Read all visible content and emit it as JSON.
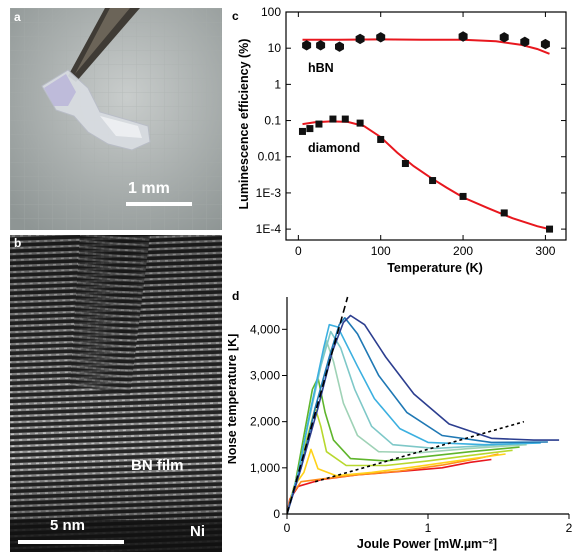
{
  "panels": {
    "a": {
      "label": "a",
      "scale_text": "1 mm"
    },
    "b": {
      "label": "b",
      "film_text": "BN film",
      "scale_text": "5 nm",
      "substrate_text": "Ni"
    }
  },
  "chart_data": [
    {
      "panel_label": "c",
      "type": "scatter",
      "ylabel": "Luminescence efficiency (%)",
      "xlabel": "Temperature (K)",
      "xlim": [
        -15,
        325
      ],
      "ylim": [
        5e-05,
        100
      ],
      "y_scale": "log",
      "grid": false,
      "x_ticks": [
        0,
        100,
        200,
        300
      ],
      "y_ticks": [
        {
          "v": 100,
          "label": "100"
        },
        {
          "v": 10,
          "label": "10"
        },
        {
          "v": 1,
          "label": "1"
        },
        {
          "v": 0.1,
          "label": "0.1"
        },
        {
          "v": 0.01,
          "label": "0.01"
        },
        {
          "v": 0.001,
          "label": "1E-3"
        },
        {
          "v": 0.0001,
          "label": "1E-4"
        }
      ],
      "fit_color": "#e8171e",
      "marker_color": "#111111",
      "series": [
        {
          "name": "hBN",
          "marker": "hexagon",
          "points": [
            [
              10,
              12
            ],
            [
              27,
              12
            ],
            [
              50,
              11
            ],
            [
              75,
              18
            ],
            [
              100,
              20
            ],
            [
              200,
              21
            ],
            [
              250,
              20
            ],
            [
              275,
              15
            ],
            [
              300,
              13
            ]
          ],
          "fit": [
            [
              5,
              17
            ],
            [
              50,
              17
            ],
            [
              100,
              17.5
            ],
            [
              150,
              17
            ],
            [
              200,
              17
            ],
            [
              240,
              15.5
            ],
            [
              270,
              12.5
            ],
            [
              290,
              9.5
            ],
            [
              305,
              7
            ]
          ]
        },
        {
          "name": "diamond",
          "marker": "square",
          "points": [
            [
              5,
              0.05
            ],
            [
              14,
              0.06
            ],
            [
              25,
              0.08
            ],
            [
              42,
              0.11
            ],
            [
              57,
              0.11
            ],
            [
              75,
              0.085
            ],
            [
              100,
              0.03
            ],
            [
              130,
              0.0065
            ],
            [
              163,
              0.0022
            ],
            [
              200,
              0.0008
            ],
            [
              250,
              0.00028
            ],
            [
              305,
              0.0001
            ]
          ],
          "fit": [
            [
              5,
              0.08
            ],
            [
              20,
              0.09
            ],
            [
              40,
              0.095
            ],
            [
              60,
              0.092
            ],
            [
              80,
              0.07
            ],
            [
              100,
              0.035
            ],
            [
              120,
              0.013
            ],
            [
              140,
              0.0055
            ],
            [
              160,
              0.0027
            ],
            [
              180,
              0.0014
            ],
            [
              200,
              0.00075
            ],
            [
              230,
              0.00038
            ],
            [
              260,
              0.0002
            ],
            [
              290,
              0.00012
            ],
            [
              305,
              0.0001
            ]
          ]
        }
      ]
    },
    {
      "panel_label": "d",
      "type": "line",
      "xlabel": "Joule Power [mW.µm⁻²]",
      "ylabel": "Noise temperature [K]",
      "xlim": [
        0,
        2
      ],
      "ylim": [
        0,
        4700
      ],
      "grid": false,
      "x_ticks": [
        0,
        1,
        2
      ],
      "y_ticks": [
        {
          "v": 0,
          "label": "0"
        },
        {
          "v": 1000,
          "label": "1,000"
        },
        {
          "v": 2000,
          "label": "2,000"
        },
        {
          "v": 3000,
          "label": "3,000"
        },
        {
          "v": 4000,
          "label": "4,000"
        }
      ],
      "reference_lines": [
        {
          "style": "long-dash",
          "color": "#000000",
          "points": [
            [
              0.0,
              0.0
            ],
            [
              0.43,
              4700
            ]
          ]
        },
        {
          "style": "short-dash",
          "color": "#000000",
          "points": [
            [
              0.2,
              700
            ],
            [
              1.68,
              2000
            ]
          ]
        }
      ],
      "series": [
        {
          "color": "#e8171e",
          "points": [
            [
              0.0,
              0
            ],
            [
              0.02,
              320
            ],
            [
              0.08,
              600
            ],
            [
              0.25,
              750
            ],
            [
              0.5,
              850
            ],
            [
              0.8,
              920
            ],
            [
              1.1,
              1000
            ],
            [
              1.3,
              1120
            ],
            [
              1.45,
              1180
            ]
          ]
        },
        {
          "color": "#ff8c1a",
          "points": [
            [
              0.0,
              0
            ],
            [
              0.03,
              400
            ],
            [
              0.1,
              700
            ],
            [
              0.25,
              760
            ],
            [
              0.5,
              850
            ],
            [
              0.8,
              930
            ],
            [
              1.1,
              1060
            ],
            [
              1.35,
              1200
            ],
            [
              1.5,
              1300
            ]
          ]
        },
        {
          "color": "#ffd21a",
          "points": [
            [
              0.0,
              0
            ],
            [
              0.05,
              600
            ],
            [
              0.12,
              900
            ],
            [
              0.17,
              1400
            ],
            [
              0.22,
              980
            ],
            [
              0.35,
              830
            ],
            [
              0.6,
              900
            ],
            [
              0.9,
              1020
            ],
            [
              1.2,
              1150
            ],
            [
              1.55,
              1300
            ]
          ]
        },
        {
          "color": "#b8d82e",
          "points": [
            [
              0.0,
              0
            ],
            [
              0.06,
              700
            ],
            [
              0.13,
              1500
            ],
            [
              0.2,
              2300
            ],
            [
              0.24,
              1900
            ],
            [
              0.28,
              1350
            ],
            [
              0.42,
              1050
            ],
            [
              0.7,
              1050
            ],
            [
              1.0,
              1150
            ],
            [
              1.3,
              1270
            ],
            [
              1.6,
              1380
            ]
          ]
        },
        {
          "color": "#5fb52c",
          "points": [
            [
              0.0,
              0
            ],
            [
              0.06,
              700
            ],
            [
              0.12,
              1700
            ],
            [
              0.18,
              2700
            ],
            [
              0.22,
              2950
            ],
            [
              0.27,
              2200
            ],
            [
              0.33,
              1600
            ],
            [
              0.45,
              1200
            ],
            [
              0.7,
              1150
            ],
            [
              1.0,
              1250
            ],
            [
              1.3,
              1350
            ],
            [
              1.65,
              1450
            ]
          ]
        },
        {
          "color": "#9fd2b6",
          "points": [
            [
              0.0,
              0
            ],
            [
              0.08,
              900
            ],
            [
              0.15,
              2000
            ],
            [
              0.22,
              3000
            ],
            [
              0.28,
              3750
            ],
            [
              0.33,
              3300
            ],
            [
              0.4,
              2400
            ],
            [
              0.5,
              1700
            ],
            [
              0.65,
              1350
            ],
            [
              0.95,
              1330
            ],
            [
              1.3,
              1420
            ],
            [
              1.7,
              1500
            ]
          ]
        },
        {
          "color": "#7ec8c8",
          "points": [
            [
              0.0,
              0
            ],
            [
              0.08,
              900
            ],
            [
              0.16,
              2100
            ],
            [
              0.24,
              3200
            ],
            [
              0.31,
              3950
            ],
            [
              0.38,
              3600
            ],
            [
              0.48,
              2700
            ],
            [
              0.6,
              1900
            ],
            [
              0.75,
              1500
            ],
            [
              1.05,
              1420
            ],
            [
              1.4,
              1480
            ],
            [
              1.75,
              1540
            ]
          ]
        },
        {
          "color": "#3cb0e0",
          "points": [
            [
              0.0,
              0
            ],
            [
              0.08,
              900
            ],
            [
              0.17,
              2300
            ],
            [
              0.26,
              3600
            ],
            [
              0.3,
              4100
            ],
            [
              0.36,
              4050
            ],
            [
              0.5,
              3200
            ],
            [
              0.62,
              2500
            ],
            [
              0.8,
              1850
            ],
            [
              1.0,
              1550
            ],
            [
              1.4,
              1500
            ],
            [
              1.8,
              1540
            ]
          ]
        },
        {
          "color": "#1f78b4",
          "points": [
            [
              0.0,
              0
            ],
            [
              0.1,
              1000
            ],
            [
              0.2,
              2300
            ],
            [
              0.3,
              3400
            ],
            [
              0.37,
              4100
            ],
            [
              0.41,
              4250
            ],
            [
              0.5,
              3900
            ],
            [
              0.65,
              3000
            ],
            [
              0.85,
              2200
            ],
            [
              1.1,
              1700
            ],
            [
              1.45,
              1550
            ],
            [
              1.85,
              1560
            ]
          ]
        },
        {
          "color": "#2c3e8f",
          "points": [
            [
              0.0,
              0
            ],
            [
              0.1,
              1000
            ],
            [
              0.22,
              2300
            ],
            [
              0.32,
              3500
            ],
            [
              0.4,
              4150
            ],
            [
              0.45,
              4300
            ],
            [
              0.55,
              4100
            ],
            [
              0.7,
              3400
            ],
            [
              0.9,
              2600
            ],
            [
              1.15,
              1950
            ],
            [
              1.45,
              1640
            ],
            [
              1.75,
              1600
            ],
            [
              1.93,
              1600
            ]
          ]
        }
      ]
    }
  ]
}
